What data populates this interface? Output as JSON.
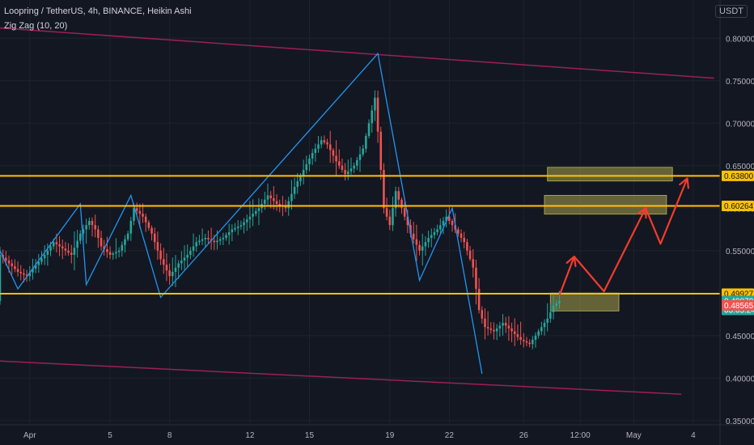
{
  "header": {
    "symbol_line": "Loopring / TetherUS, 4h, BINANCE, Heikin Ashi",
    "indicator_line": "Zig Zag (10, 20)",
    "currency": "USDT"
  },
  "colors": {
    "background": "#131722",
    "grid": "#1e222d",
    "up": "#26a69a",
    "down": "#ef5350",
    "zigzag": "#2196f3",
    "channel": "#9c1f5a",
    "level": "#ffc107",
    "zone": "#a8a14a",
    "projection": "#f23c2c"
  },
  "chart_data": {
    "type": "candlestick",
    "chart_style": "Heikin Ashi",
    "x_axis": {
      "tick_labels": [
        "Apr",
        "5",
        "8",
        "12",
        "15",
        "19",
        "22",
        "26",
        "12:00",
        "May",
        "4"
      ]
    },
    "y_axis": {
      "tick_labels": [
        "0.35000",
        "0.40000",
        "0.45000",
        "0.50000",
        "0.55000",
        "0.60000",
        "0.65000",
        "0.70000",
        "0.75000",
        "0.80000"
      ],
      "ticks": [
        0.35,
        0.4,
        0.45,
        0.5,
        0.55,
        0.6,
        0.65,
        0.7,
        0.75,
        0.8
      ],
      "range": [
        0.345,
        0.845
      ],
      "side": "right"
    },
    "horizontal_levels": [
      {
        "value": 0.638,
        "label": "0.63800"
      },
      {
        "value": 0.60264,
        "label": "0.60264"
      },
      {
        "value": 0.49927,
        "label": "0.49927"
      }
    ],
    "price_labels": [
      {
        "label": "0.49070",
        "sub": "03:05:24",
        "color": "#26a69a",
        "value": 0.4907
      },
      {
        "label": "0.48565",
        "color": "#ef5350",
        "value": 0.48565
      }
    ],
    "price_path": [
      {
        "t": 0,
        "p": 0.545
      },
      {
        "t": 3,
        "p": 0.535
      },
      {
        "t": 6,
        "p": 0.525
      },
      {
        "t": 9,
        "p": 0.52
      },
      {
        "t": 12,
        "p": 0.533
      },
      {
        "t": 15,
        "p": 0.545
      },
      {
        "t": 18,
        "p": 0.56
      },
      {
        "t": 20,
        "p": 0.555
      },
      {
        "t": 24,
        "p": 0.545
      },
      {
        "t": 27,
        "p": 0.57
      },
      {
        "t": 30,
        "p": 0.585
      },
      {
        "t": 32,
        "p": 0.575
      },
      {
        "t": 34,
        "p": 0.555
      },
      {
        "t": 37,
        "p": 0.545
      },
      {
        "t": 40,
        "p": 0.55
      },
      {
        "t": 43,
        "p": 0.57
      },
      {
        "t": 45,
        "p": 0.6
      },
      {
        "t": 48,
        "p": 0.59
      },
      {
        "t": 51,
        "p": 0.57
      },
      {
        "t": 54,
        "p": 0.54
      },
      {
        "t": 57,
        "p": 0.52
      },
      {
        "t": 60,
        "p": 0.535
      },
      {
        "t": 63,
        "p": 0.545
      },
      {
        "t": 66,
        "p": 0.56
      },
      {
        "t": 69,
        "p": 0.565
      },
      {
        "t": 72,
        "p": 0.56
      },
      {
        "t": 75,
        "p": 0.565
      },
      {
        "t": 78,
        "p": 0.575
      },
      {
        "t": 81,
        "p": 0.58
      },
      {
        "t": 84,
        "p": 0.59
      },
      {
        "t": 87,
        "p": 0.6
      },
      {
        "t": 90,
        "p": 0.615
      },
      {
        "t": 93,
        "p": 0.605
      },
      {
        "t": 96,
        "p": 0.6
      },
      {
        "t": 99,
        "p": 0.625
      },
      {
        "t": 102,
        "p": 0.645
      },
      {
        "t": 105,
        "p": 0.665
      },
      {
        "t": 108,
        "p": 0.68
      },
      {
        "t": 110,
        "p": 0.675
      },
      {
        "t": 113,
        "p": 0.655
      },
      {
        "t": 116,
        "p": 0.64
      },
      {
        "t": 119,
        "p": 0.65
      },
      {
        "t": 122,
        "p": 0.67
      },
      {
        "t": 124,
        "p": 0.7
      },
      {
        "t": 126,
        "p": 0.73
      },
      {
        "t": 127,
        "p": 0.69
      },
      {
        "t": 129,
        "p": 0.6
      },
      {
        "t": 131,
        "p": 0.58
      },
      {
        "t": 133,
        "p": 0.62
      },
      {
        "t": 135,
        "p": 0.6
      },
      {
        "t": 138,
        "p": 0.57
      },
      {
        "t": 141,
        "p": 0.55
      },
      {
        "t": 144,
        "p": 0.565
      },
      {
        "t": 147,
        "p": 0.575
      },
      {
        "t": 150,
        "p": 0.59
      },
      {
        "t": 153,
        "p": 0.575
      },
      {
        "t": 156,
        "p": 0.56
      },
      {
        "t": 159,
        "p": 0.53
      },
      {
        "t": 161,
        "p": 0.48
      },
      {
        "t": 163,
        "p": 0.46
      },
      {
        "t": 166,
        "p": 0.455
      },
      {
        "t": 169,
        "p": 0.465
      },
      {
        "t": 172,
        "p": 0.455
      },
      {
        "t": 175,
        "p": 0.445
      },
      {
        "t": 178,
        "p": 0.44
      },
      {
        "t": 181,
        "p": 0.455
      },
      {
        "t": 184,
        "p": 0.47
      },
      {
        "t": 186,
        "p": 0.485
      },
      {
        "t": 188,
        "p": 0.4907
      }
    ],
    "zigzag": [
      {
        "t": 0,
        "p": 0.55
      },
      {
        "t": 6,
        "p": 0.505
      },
      {
        "t": 27,
        "p": 0.605
      },
      {
        "t": 29,
        "p": 0.51
      },
      {
        "t": 44,
        "p": 0.615
      },
      {
        "t": 54,
        "p": 0.495
      },
      {
        "t": 127,
        "p": 0.782
      },
      {
        "t": 141,
        "p": 0.515
      },
      {
        "t": 152,
        "p": 0.6
      },
      {
        "t": 162,
        "p": 0.405
      }
    ],
    "channel_lines": [
      {
        "from": {
          "t": 0,
          "p": 0.812
        },
        "to": {
          "t": 240,
          "p": 0.753
        }
      },
      {
        "from": {
          "t": 0,
          "p": 0.42
        },
        "to": {
          "t": 229,
          "p": 0.381
        }
      }
    ],
    "zones": [
      {
        "t0": 185,
        "t1": 208,
        "p0": 0.479,
        "p1": 0.5
      },
      {
        "t0": 183,
        "t1": 224,
        "p0": 0.593,
        "p1": 0.615
      },
      {
        "t0": 184,
        "t1": 226,
        "p0": 0.632,
        "p1": 0.648
      }
    ],
    "projection_path": [
      {
        "t": 188,
        "p": 0.497
      },
      {
        "t": 193,
        "p": 0.543
      },
      {
        "t": 203,
        "p": 0.502
      },
      {
        "t": 217,
        "p": 0.6
      },
      {
        "t": 222,
        "p": 0.558
      },
      {
        "t": 231,
        "p": 0.635
      }
    ],
    "projection_arrow_at": [
      1,
      3,
      5
    ]
  }
}
